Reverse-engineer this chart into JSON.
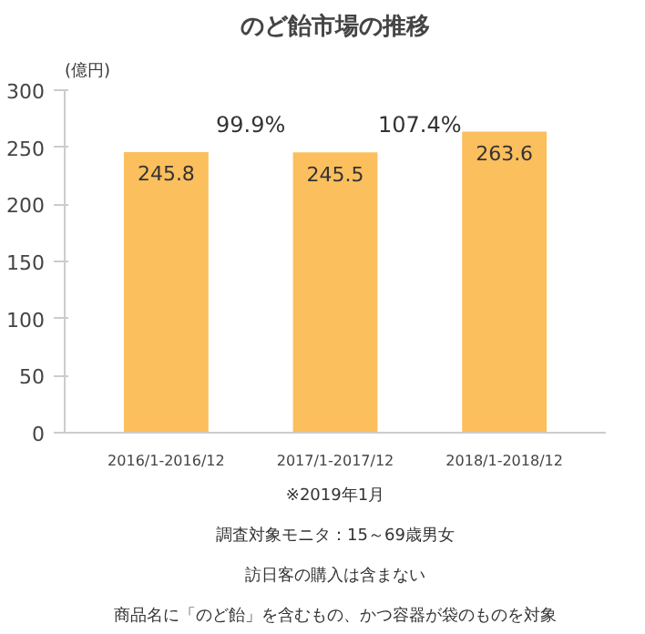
{
  "chart_data": {
    "type": "bar",
    "title": "のど飴市場の推移",
    "ylabel": "(億円)",
    "categories": [
      "2016/1-2016/12",
      "2017/1-2017/12",
      "2018/1-2018/12"
    ],
    "values": [
      245.8,
      245.5,
      263.6
    ],
    "color": "#fbbf5e",
    "data_labels": true,
    "ylim": [
      0,
      300
    ],
    "yticks": [
      0,
      50,
      100,
      150,
      200,
      250,
      300
    ],
    "grid": false,
    "annotations": [
      "99.9%",
      "107.4%",
      "※2019年1月",
      "調査対象モニタ：15～69歳男女",
      "訪日客の購入は含まない",
      "商品名に「のど飴」を含むもの、かつ容器が袋のものを対象"
    ]
  }
}
